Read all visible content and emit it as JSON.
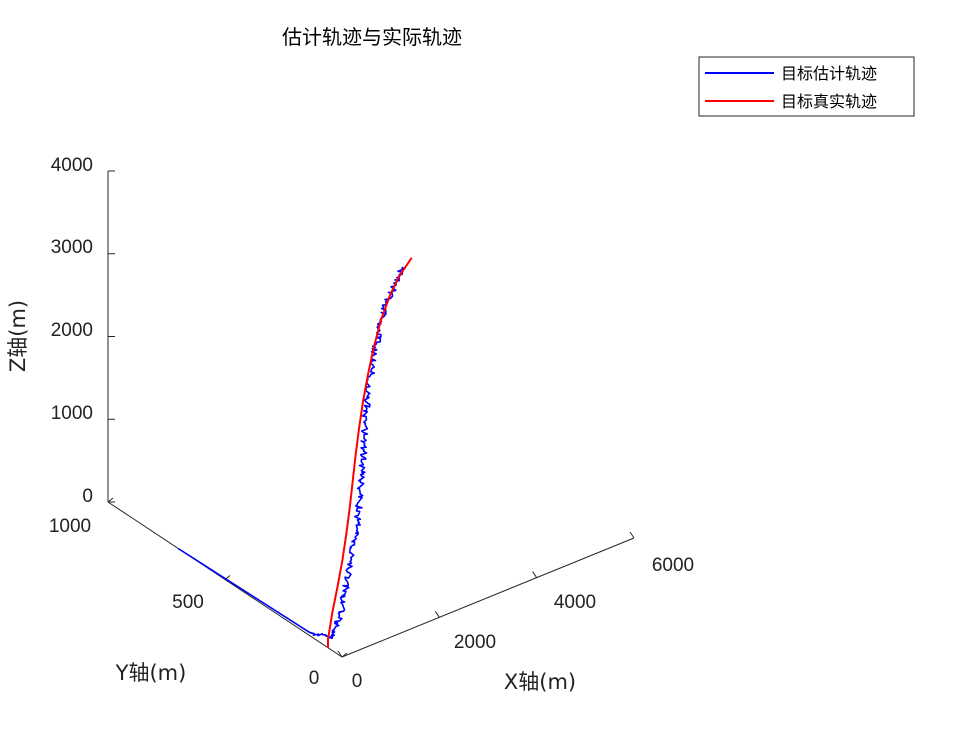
{
  "chart_data": {
    "type": "line",
    "title": "估计轨迹与实际轨迹",
    "xlabel": "X轴(m)",
    "ylabel": "Y轴(m)",
    "zlabel": "Z轴(m)",
    "xlim": [
      0,
      6000
    ],
    "ylim": [
      0,
      1000
    ],
    "zlim": [
      0,
      4000
    ],
    "xticks": [
      "0",
      "2000",
      "4000",
      "6000"
    ],
    "yticks": [
      "0",
      "500",
      "1000"
    ],
    "zticks": [
      "0",
      "1000",
      "2000",
      "3000",
      "4000"
    ],
    "grid": false,
    "legend_position": "top-right",
    "series": [
      {
        "name": "目标估计轨迹",
        "color": "#0000ff",
        "noisy": true,
        "points": [
          [
            0,
            700,
            0
          ],
          [
            30,
            400,
            0
          ],
          [
            60,
            150,
            0
          ],
          [
            90,
            60,
            100
          ],
          [
            200,
            60,
            250
          ],
          [
            300,
            60,
            450
          ],
          [
            400,
            60,
            700
          ],
          [
            480,
            60,
            950
          ],
          [
            560,
            60,
            1200
          ],
          [
            620,
            60,
            1450
          ],
          [
            660,
            60,
            1700
          ],
          [
            700,
            60,
            1950
          ],
          [
            730,
            60,
            2200
          ],
          [
            760,
            60,
            2450
          ],
          [
            800,
            60,
            2700
          ],
          [
            850,
            60,
            2950
          ],
          [
            920,
            60,
            3200
          ],
          [
            1000,
            60,
            3450
          ],
          [
            1100,
            60,
            3680
          ],
          [
            1230,
            60,
            3900
          ],
          [
            1380,
            60,
            4080
          ],
          [
            1540,
            60,
            4230
          ]
        ]
      },
      {
        "name": "目标真实轨迹",
        "color": "#ff0000",
        "noisy": false,
        "points": [
          [
            0,
            60,
            0
          ],
          [
            0,
            60,
            100
          ],
          [
            90,
            60,
            400
          ],
          [
            200,
            60,
            700
          ],
          [
            300,
            60,
            1000
          ],
          [
            380,
            60,
            1300
          ],
          [
            450,
            60,
            1600
          ],
          [
            510,
            60,
            1900
          ],
          [
            570,
            60,
            2200
          ],
          [
            640,
            60,
            2500
          ],
          [
            720,
            60,
            2800
          ],
          [
            820,
            60,
            3100
          ],
          [
            940,
            60,
            3400
          ],
          [
            1090,
            60,
            3700
          ],
          [
            1270,
            60,
            3950
          ],
          [
            1480,
            60,
            4150
          ],
          [
            1720,
            60,
            4300
          ]
        ]
      }
    ]
  }
}
